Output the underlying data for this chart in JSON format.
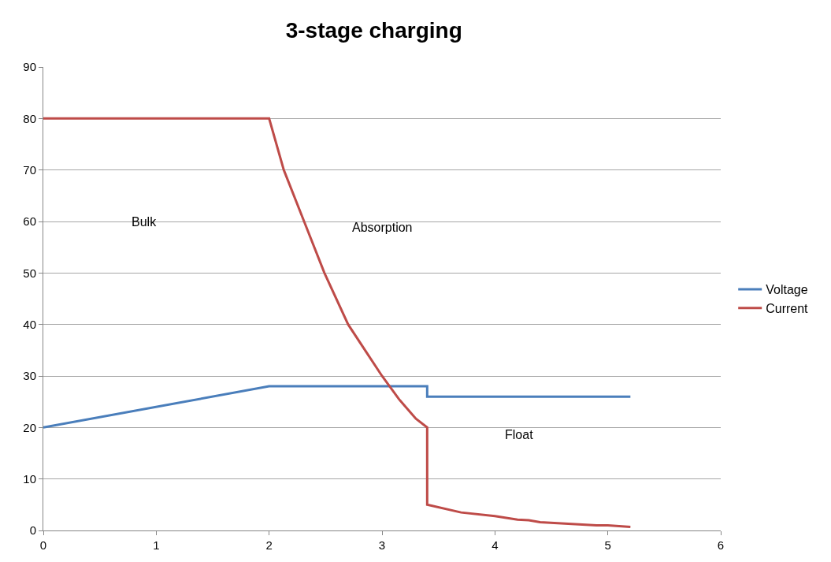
{
  "chart_data": {
    "type": "line",
    "title": "3-stage charging",
    "series": [
      {
        "name": "Voltage",
        "color": "#4a7ebb",
        "x": [
          0,
          2,
          3.4,
          3.4,
          5.2
        ],
        "values": [
          20,
          28,
          28,
          26,
          26
        ]
      },
      {
        "name": "Current",
        "color": "#be4b48",
        "x": [
          0,
          2,
          2.13,
          2.31,
          2.49,
          2.7,
          2.85,
          3.0,
          3.15,
          3.3,
          3.4,
          3.4,
          3.7,
          4.0,
          4.2,
          4.3,
          4.4,
          4.9,
          5.0,
          5.2
        ],
        "values": [
          80,
          80,
          70,
          60,
          50,
          40,
          35,
          30,
          25.5,
          21.7,
          20,
          5,
          3.5,
          2.8,
          2.1,
          2,
          1.6,
          1.0,
          1.0,
          0.7
        ]
      }
    ],
    "xlim": [
      0,
      6
    ],
    "xticks": [
      0,
      1,
      2,
      3,
      4,
      5,
      6
    ],
    "ylim": [
      0,
      90
    ],
    "yticks": [
      0,
      10,
      20,
      30,
      40,
      50,
      60,
      70,
      80,
      90
    ],
    "grid": "y",
    "legend": "right",
    "marker": "none",
    "line_style": "solid",
    "annotations": [
      "Bulk",
      "Absorption",
      "Float"
    ]
  }
}
